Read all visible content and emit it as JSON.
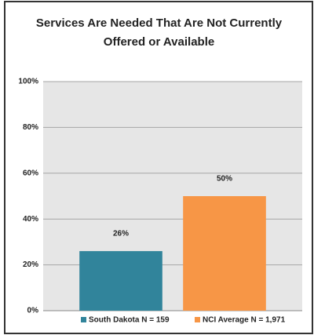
{
  "chart_data": {
    "type": "bar",
    "title": "Services Are Needed That Are Not Currently Offered or Available",
    "categories": [
      null
    ],
    "series": [
      {
        "name": "South Dakota N = 159",
        "color": "#31849b",
        "values": [
          26
        ],
        "value_labels": [
          "26%"
        ]
      },
      {
        "name": "NCI Average N = 1,971",
        "color": "#f79646",
        "values": [
          50
        ],
        "value_labels": [
          "50%"
        ]
      }
    ],
    "ylim": [
      0,
      100
    ],
    "yticks": [
      {
        "value": 0,
        "label": "0%"
      },
      {
        "value": 20,
        "label": "20%"
      },
      {
        "value": 40,
        "label": "40%"
      },
      {
        "value": 60,
        "label": "60%"
      },
      {
        "value": 80,
        "label": "80%"
      },
      {
        "value": 100,
        "label": "100%"
      }
    ],
    "grid": true
  }
}
